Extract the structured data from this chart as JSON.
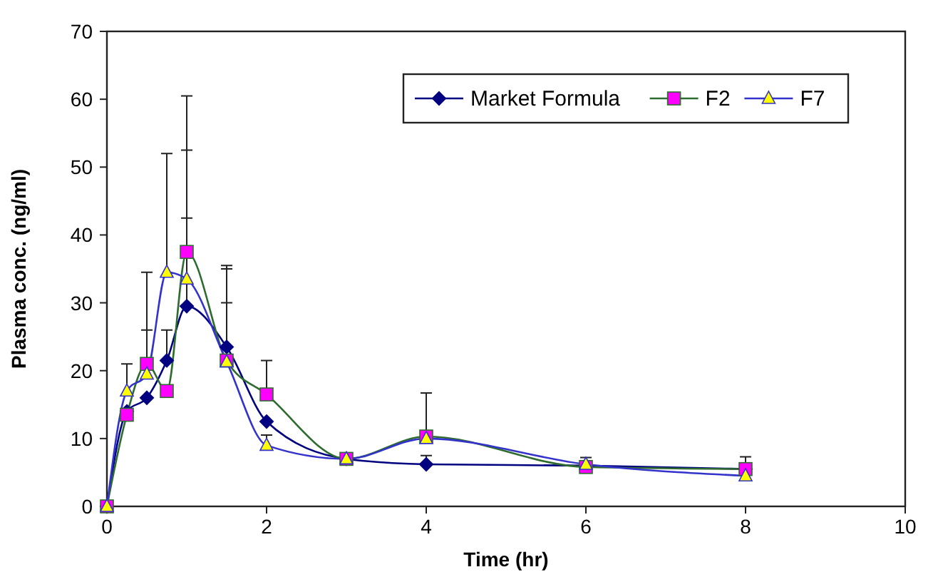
{
  "chart_data": {
    "type": "line",
    "xlabel": "Time (hr)",
    "ylabel": "Plasma conc. (ng/ml)",
    "x": [
      0,
      0.25,
      0.5,
      0.75,
      1,
      1.5,
      2,
      3,
      4,
      6,
      8
    ],
    "xlim": [
      0,
      10
    ],
    "xticks": [
      0,
      2,
      4,
      6,
      8,
      10
    ],
    "ylim": [
      0,
      70
    ],
    "yticks": [
      0,
      10,
      20,
      30,
      40,
      50,
      60,
      70
    ],
    "grid": false,
    "legend": "top right",
    "line_style": "solid",
    "series": [
      {
        "name": "Market Formula",
        "color": "#000080",
        "marker": "diamond",
        "colors": [
          "#000080",
          "#000080",
          "#000080",
          "#000080",
          "#000080",
          "#000080",
          "#000080",
          "#000080",
          "#000080",
          "#000080",
          "#000080"
        ],
        "values": [
          0,
          14,
          16,
          21.5,
          29.5,
          23.5,
          12.5,
          7,
          6.2,
          6,
          5.5
        ],
        "errors": [
          null,
          null,
          null,
          [
            21.5,
            26
          ],
          [
            29.5,
            42.5
          ],
          [
            23.5,
            35.5
          ],
          null,
          null,
          [
            6.2,
            7.5
          ],
          null,
          null
        ]
      },
      {
        "name": "F2",
        "color": "#2e6b2e",
        "marker": "square",
        "colors": [
          "#ff00ff",
          "#ff00ff",
          "#ff00ff",
          "#ff00ff",
          "#ff00ff",
          "#ff00ff",
          "#ff00ff",
          "#ff00ff",
          "#ff00ff",
          "#ff00ff",
          "#ff00ff"
        ],
        "values": [
          0,
          13.5,
          21,
          17,
          37.5,
          21.5,
          16.5,
          7,
          10.3,
          5.8,
          5.5
        ],
        "errors": [
          null,
          null,
          [
            21,
            34.5
          ],
          null,
          [
            37.5,
            60.5
          ],
          [
            21.5,
            35
          ],
          [
            16.5,
            21.5
          ],
          null,
          [
            10.3,
            16.7
          ],
          null,
          [
            5.5,
            7.3
          ]
        ]
      },
      {
        "name": "F7",
        "color": "#3333cc",
        "marker": "triangle",
        "colors": [
          "#ffff00",
          "#ffff00",
          "#ffff00",
          "#ffff00",
          "#ffff00",
          "#ffff00",
          "#ffff00",
          "#ffff00",
          "#ffff00",
          "#ffff00",
          "#ffff00"
        ],
        "values": [
          0,
          17,
          19.5,
          34.5,
          33.5,
          21.3,
          9,
          7,
          10,
          6.2,
          4.5
        ],
        "errors": [
          null,
          [
            17,
            21
          ],
          [
            19.5,
            26
          ],
          [
            34.5,
            52
          ],
          [
            33.5,
            52.5
          ],
          [
            21.3,
            30
          ],
          [
            9,
            10.5
          ],
          null,
          null,
          [
            6.2,
            7.2
          ],
          null
        ]
      }
    ]
  }
}
